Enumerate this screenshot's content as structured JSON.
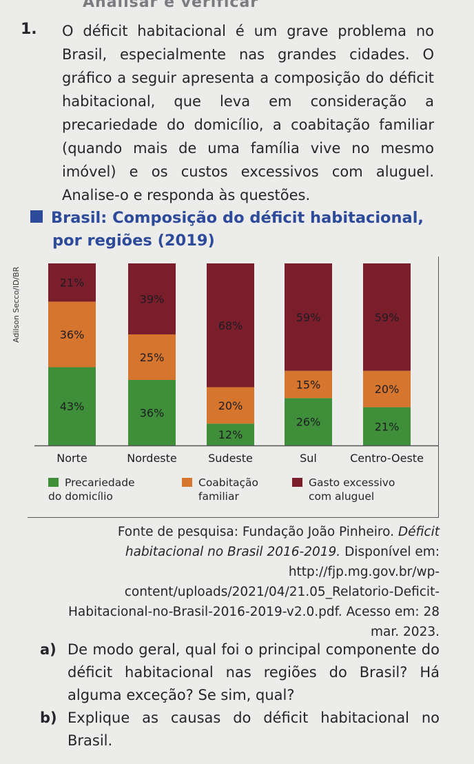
{
  "section_heading": "Analisar e verificar",
  "question_number": "1.",
  "intro_text": "O déficit habitacional é um grave problema no Brasil, especialmente nas grandes cidades. O gráfico a seguir apresenta a composição do déficit habitacional, que leva em consideração a precariedade do domicílio, a coabitação familiar (quando mais de uma família vive no mesmo imóvel) e os custos excessivos com aluguel. Analise-o e responda às questões.",
  "credit": "Adilson Secco/ID/BR",
  "colors": {
    "precariedade": "#3f8f3a",
    "coabitacao": "#d6752d",
    "gasto": "#7a1e2c",
    "title_blue": "#2d4a9b"
  },
  "legend": {
    "precariedade_line1": "Precariedade",
    "precariedade_line2": "do domicílio",
    "coabitacao_line1": "Coabitação",
    "coabitacao_line2": "familiar",
    "gasto_line1": "Gasto excessivo",
    "gasto_line2": "com aluguel"
  },
  "chart_data": {
    "type": "bar",
    "stacked": true,
    "normalized_100_percent": true,
    "title": "Brasil: Composição do déficit habitacional, por regiões (2019)",
    "title_line1": "Brasil: Composição do déficit habitacional,",
    "title_line2": "por regiões (2019)",
    "categories": [
      "Norte",
      "Nordeste",
      "Sudeste",
      "Sul",
      "Centro-Oeste"
    ],
    "series": [
      {
        "name": "Precariedade do domicílio",
        "values": [
          43,
          36,
          12,
          26,
          21
        ],
        "labels": [
          "43%",
          "36%",
          "12%",
          "26%",
          "21%"
        ]
      },
      {
        "name": "Coabitação familiar",
        "values": [
          36,
          25,
          20,
          15,
          20
        ],
        "labels": [
          "36%",
          "25%",
          "20%",
          "15%",
          "20%"
        ]
      },
      {
        "name": "Gasto excessivo com aluguel",
        "values": [
          21,
          39,
          68,
          59,
          59
        ],
        "labels": [
          "21%",
          "39%",
          "68%",
          "59%",
          "59%"
        ]
      }
    ],
    "ylim": [
      0,
      100
    ],
    "grid": false,
    "legend_position": "bottom"
  },
  "source": {
    "prefix": "Fonte de pesquisa: Fundação João Pinheiro.",
    "work": "Déficit habitacional no Brasil 2016-2019.",
    "available": "Disponível em: http://fjp.mg.gov.br/wp-content/uploads/2021/04/21.05_Relatorio-Deficit-Habitacional-no-Brasil-2016-2019-v2.0.pdf.",
    "access": "Acesso em: 28 mar. 2023."
  },
  "questions": {
    "a_letter": "a)",
    "a_text": "De modo geral, qual foi o principal componente do déficit habitacional nas regiões do Brasil? Há alguma exceção? Se sim, qual?",
    "b_letter": "b)",
    "b_text": "Explique as causas do déficit habitacional no Brasil."
  }
}
